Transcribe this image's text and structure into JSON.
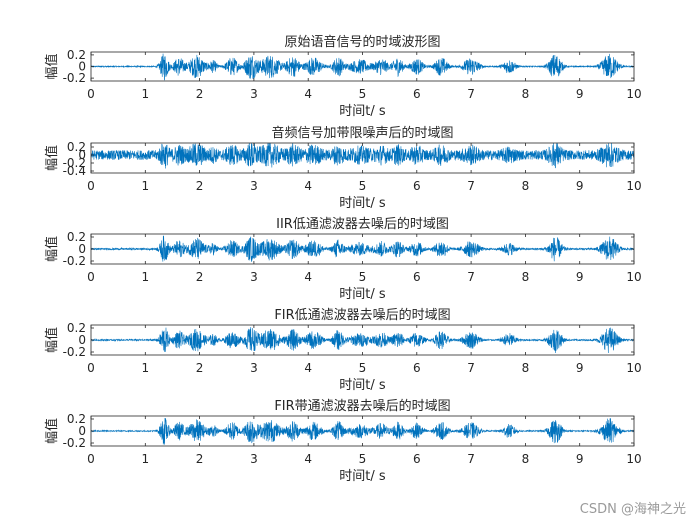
{
  "watermark": "CSDN @海神之光",
  "chart_data": [
    {
      "type": "line",
      "title": "原始语音信号的时域波形图",
      "xlabel": "时间t/ s",
      "ylabel": "幅值",
      "xlim": [
        0,
        10
      ],
      "ylim": [
        -0.25,
        0.25
      ],
      "xticks": [
        "0",
        "1",
        "2",
        "3",
        "4",
        "5",
        "6",
        "7",
        "8",
        "9",
        "10"
      ],
      "yticks": [
        "0.2",
        "0",
        "-0.2"
      ],
      "grid": false,
      "color": "#0072BD",
      "series": [
        {
          "noise_amplitude": 0.01,
          "bursts": [
            {
              "center": 1.35,
              "width": 0.08,
              "amp": 0.24
            },
            {
              "center": 1.62,
              "width": 0.1,
              "amp": 0.16
            },
            {
              "center": 1.95,
              "width": 0.15,
              "amp": 0.2
            },
            {
              "center": 2.25,
              "width": 0.08,
              "amp": 0.1
            },
            {
              "center": 2.6,
              "width": 0.12,
              "amp": 0.16
            },
            {
              "center": 2.95,
              "width": 0.12,
              "amp": 0.22
            },
            {
              "center": 3.3,
              "width": 0.18,
              "amp": 0.2
            },
            {
              "center": 3.72,
              "width": 0.12,
              "amp": 0.18
            },
            {
              "center": 4.1,
              "width": 0.15,
              "amp": 0.16
            },
            {
              "center": 4.55,
              "width": 0.1,
              "amp": 0.17
            },
            {
              "center": 4.95,
              "width": 0.2,
              "amp": 0.12
            },
            {
              "center": 5.35,
              "width": 0.12,
              "amp": 0.14
            },
            {
              "center": 5.65,
              "width": 0.1,
              "amp": 0.16
            },
            {
              "center": 6.0,
              "width": 0.12,
              "amp": 0.14
            },
            {
              "center": 6.45,
              "width": 0.12,
              "amp": 0.16
            },
            {
              "center": 7.0,
              "width": 0.15,
              "amp": 0.15
            },
            {
              "center": 7.7,
              "width": 0.12,
              "amp": 0.12
            },
            {
              "center": 8.55,
              "width": 0.12,
              "amp": 0.22
            },
            {
              "center": 9.55,
              "width": 0.15,
              "amp": 0.22
            }
          ]
        }
      ]
    },
    {
      "type": "line",
      "title": "音频信号加带限噪声后的时域图",
      "xlabel": "时间t/ s",
      "ylabel": "幅值",
      "xlim": [
        0,
        10
      ],
      "ylim": [
        -0.45,
        0.3
      ],
      "xticks": [
        "0",
        "1",
        "2",
        "3",
        "4",
        "5",
        "6",
        "7",
        "8",
        "9",
        "10"
      ],
      "yticks": [
        "0.2",
        "0",
        "-0.2",
        "-0.4"
      ],
      "grid": false,
      "color": "#0072BD",
      "series": [
        {
          "noise_amplitude": 0.12,
          "bursts": [
            {
              "center": 1.35,
              "width": 0.08,
              "amp": 0.24
            },
            {
              "center": 1.62,
              "width": 0.1,
              "amp": 0.16
            },
            {
              "center": 1.95,
              "width": 0.15,
              "amp": 0.2
            },
            {
              "center": 2.25,
              "width": 0.08,
              "amp": 0.1
            },
            {
              "center": 2.6,
              "width": 0.12,
              "amp": 0.16
            },
            {
              "center": 2.95,
              "width": 0.12,
              "amp": 0.22
            },
            {
              "center": 3.3,
              "width": 0.18,
              "amp": 0.2
            },
            {
              "center": 3.72,
              "width": 0.12,
              "amp": 0.18
            },
            {
              "center": 4.1,
              "width": 0.15,
              "amp": 0.16
            },
            {
              "center": 4.55,
              "width": 0.1,
              "amp": 0.17
            },
            {
              "center": 4.95,
              "width": 0.2,
              "amp": 0.12
            },
            {
              "center": 5.35,
              "width": 0.12,
              "amp": 0.14
            },
            {
              "center": 5.65,
              "width": 0.1,
              "amp": 0.16
            },
            {
              "center": 6.0,
              "width": 0.12,
              "amp": 0.14
            },
            {
              "center": 6.45,
              "width": 0.12,
              "amp": 0.16
            },
            {
              "center": 7.0,
              "width": 0.15,
              "amp": 0.15
            },
            {
              "center": 7.7,
              "width": 0.12,
              "amp": 0.12
            },
            {
              "center": 8.55,
              "width": 0.12,
              "amp": 0.22
            },
            {
              "center": 9.55,
              "width": 0.15,
              "amp": 0.22
            }
          ]
        }
      ]
    },
    {
      "type": "line",
      "title": "IIR低通滤波器去噪后的时域图",
      "xlabel": "时间t/ s",
      "ylabel": "幅值",
      "xlim": [
        0,
        10
      ],
      "ylim": [
        -0.25,
        0.25
      ],
      "xticks": [
        "0",
        "1",
        "2",
        "3",
        "4",
        "5",
        "6",
        "7",
        "8",
        "9",
        "10"
      ],
      "yticks": [
        "0.2",
        "0",
        "-0.2"
      ],
      "grid": false,
      "color": "#0072BD",
      "series": [
        {
          "noise_amplitude": 0.015,
          "bursts": [
            {
              "center": 1.35,
              "width": 0.08,
              "amp": 0.22
            },
            {
              "center": 1.62,
              "width": 0.1,
              "amp": 0.14
            },
            {
              "center": 1.95,
              "width": 0.15,
              "amp": 0.18
            },
            {
              "center": 2.25,
              "width": 0.08,
              "amp": 0.09
            },
            {
              "center": 2.6,
              "width": 0.12,
              "amp": 0.14
            },
            {
              "center": 2.95,
              "width": 0.12,
              "amp": 0.2
            },
            {
              "center": 3.3,
              "width": 0.18,
              "amp": 0.18
            },
            {
              "center": 3.72,
              "width": 0.12,
              "amp": 0.16
            },
            {
              "center": 4.1,
              "width": 0.15,
              "amp": 0.14
            },
            {
              "center": 4.55,
              "width": 0.1,
              "amp": 0.15
            },
            {
              "center": 4.95,
              "width": 0.2,
              "amp": 0.1
            },
            {
              "center": 5.35,
              "width": 0.12,
              "amp": 0.12
            },
            {
              "center": 5.65,
              "width": 0.1,
              "amp": 0.14
            },
            {
              "center": 6.0,
              "width": 0.12,
              "amp": 0.12
            },
            {
              "center": 6.45,
              "width": 0.12,
              "amp": 0.14
            },
            {
              "center": 7.0,
              "width": 0.15,
              "amp": 0.13
            },
            {
              "center": 7.7,
              "width": 0.12,
              "amp": 0.1
            },
            {
              "center": 8.55,
              "width": 0.12,
              "amp": 0.2
            },
            {
              "center": 9.55,
              "width": 0.15,
              "amp": 0.2
            }
          ]
        }
      ]
    },
    {
      "type": "line",
      "title": "FIR低通滤波器去噪后的时域图",
      "xlabel": "时间t/ s",
      "ylabel": "幅值",
      "xlim": [
        0,
        10
      ],
      "ylim": [
        -0.25,
        0.25
      ],
      "xticks": [
        "0",
        "1",
        "2",
        "3",
        "4",
        "5",
        "6",
        "7",
        "8",
        "9",
        "10"
      ],
      "yticks": [
        "0.2",
        "0",
        "-0.2"
      ],
      "grid": false,
      "color": "#0072BD",
      "series": [
        {
          "noise_amplitude": 0.012,
          "bursts": [
            {
              "center": 1.35,
              "width": 0.08,
              "amp": 0.23
            },
            {
              "center": 1.62,
              "width": 0.1,
              "amp": 0.15
            },
            {
              "center": 1.95,
              "width": 0.15,
              "amp": 0.19
            },
            {
              "center": 2.25,
              "width": 0.08,
              "amp": 0.09
            },
            {
              "center": 2.6,
              "width": 0.12,
              "amp": 0.15
            },
            {
              "center": 2.95,
              "width": 0.12,
              "amp": 0.21
            },
            {
              "center": 3.3,
              "width": 0.18,
              "amp": 0.19
            },
            {
              "center": 3.72,
              "width": 0.12,
              "amp": 0.17
            },
            {
              "center": 4.1,
              "width": 0.15,
              "amp": 0.15
            },
            {
              "center": 4.55,
              "width": 0.1,
              "amp": 0.16
            },
            {
              "center": 4.95,
              "width": 0.2,
              "amp": 0.11
            },
            {
              "center": 5.35,
              "width": 0.12,
              "amp": 0.13
            },
            {
              "center": 5.65,
              "width": 0.1,
              "amp": 0.15
            },
            {
              "center": 6.0,
              "width": 0.12,
              "amp": 0.13
            },
            {
              "center": 6.45,
              "width": 0.12,
              "amp": 0.15
            },
            {
              "center": 7.0,
              "width": 0.15,
              "amp": 0.14
            },
            {
              "center": 7.7,
              "width": 0.12,
              "amp": 0.11
            },
            {
              "center": 8.55,
              "width": 0.12,
              "amp": 0.21
            },
            {
              "center": 9.55,
              "width": 0.15,
              "amp": 0.21
            }
          ]
        }
      ]
    },
    {
      "type": "line",
      "title": "FIR带通滤波器去噪后的时域图",
      "xlabel": "时间t/ s",
      "ylabel": "幅值",
      "xlim": [
        0,
        10
      ],
      "ylim": [
        -0.25,
        0.25
      ],
      "xticks": [
        "0",
        "1",
        "2",
        "3",
        "4",
        "5",
        "6",
        "7",
        "8",
        "9",
        "10"
      ],
      "yticks": [
        "0.2",
        "0",
        "-0.2"
      ],
      "grid": false,
      "color": "#0072BD",
      "series": [
        {
          "noise_amplitude": 0.01,
          "bursts": [
            {
              "center": 1.35,
              "width": 0.08,
              "amp": 0.23
            },
            {
              "center": 1.62,
              "width": 0.1,
              "amp": 0.15
            },
            {
              "center": 1.95,
              "width": 0.15,
              "amp": 0.19
            },
            {
              "center": 2.25,
              "width": 0.08,
              "amp": 0.1
            },
            {
              "center": 2.6,
              "width": 0.12,
              "amp": 0.15
            },
            {
              "center": 2.95,
              "width": 0.12,
              "amp": 0.21
            },
            {
              "center": 3.3,
              "width": 0.18,
              "amp": 0.19
            },
            {
              "center": 3.72,
              "width": 0.12,
              "amp": 0.17
            },
            {
              "center": 4.1,
              "width": 0.15,
              "amp": 0.15
            },
            {
              "center": 4.55,
              "width": 0.1,
              "amp": 0.16
            },
            {
              "center": 4.95,
              "width": 0.2,
              "amp": 0.11
            },
            {
              "center": 5.35,
              "width": 0.12,
              "amp": 0.13
            },
            {
              "center": 5.65,
              "width": 0.1,
              "amp": 0.15
            },
            {
              "center": 6.0,
              "width": 0.12,
              "amp": 0.13
            },
            {
              "center": 6.45,
              "width": 0.12,
              "amp": 0.15
            },
            {
              "center": 7.0,
              "width": 0.15,
              "amp": 0.14
            },
            {
              "center": 7.7,
              "width": 0.12,
              "amp": 0.11
            },
            {
              "center": 8.55,
              "width": 0.12,
              "amp": 0.21
            },
            {
              "center": 9.55,
              "width": 0.15,
              "amp": 0.21
            }
          ]
        }
      ]
    }
  ]
}
